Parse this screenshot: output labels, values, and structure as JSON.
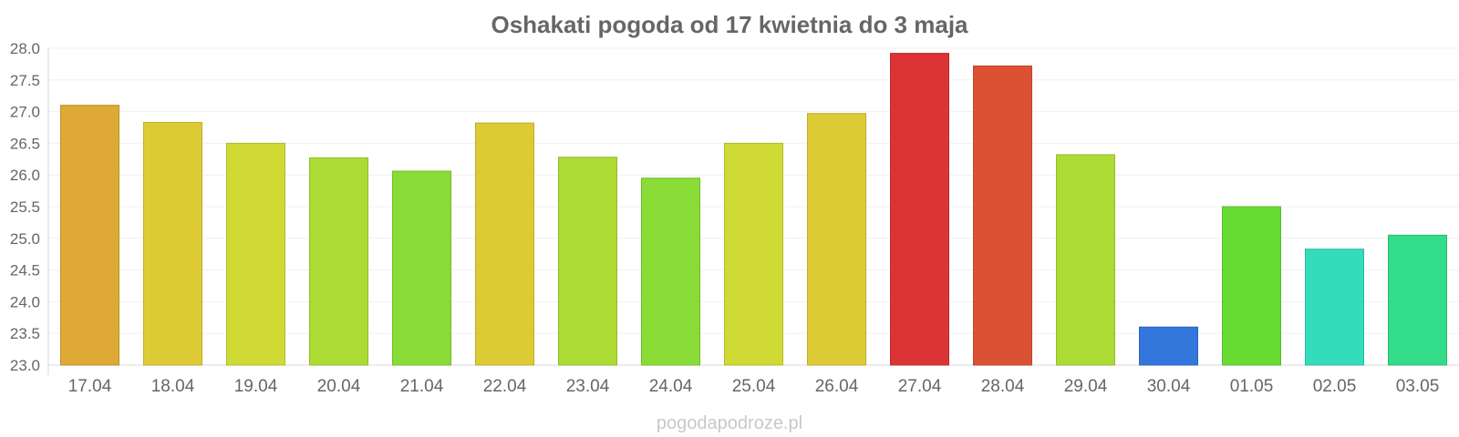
{
  "chart_data": {
    "type": "bar",
    "title": "Oshakati pogoda od 17 kwietnia do 3 maja",
    "xlabel": "",
    "ylabel": "",
    "categories": [
      "17.04",
      "18.04",
      "19.04",
      "20.04",
      "21.04",
      "22.04",
      "23.04",
      "24.04",
      "25.04",
      "26.04",
      "27.04",
      "28.04",
      "29.04",
      "30.04",
      "01.05",
      "02.05",
      "03.05"
    ],
    "values": [
      27.1,
      26.83,
      26.5,
      26.27,
      26.06,
      26.82,
      26.28,
      25.95,
      26.5,
      26.97,
      27.92,
      27.72,
      26.32,
      23.6,
      25.5,
      24.83,
      25.05
    ],
    "colors": [
      "#dea934",
      "#dccb34",
      "#cfdb34",
      "#acdc33",
      "#89dc36",
      "#dccb34",
      "#acdc33",
      "#89dc36",
      "#cfdb34",
      "#dccb34",
      "#dc3434",
      "#dc5134",
      "#acdc33",
      "#3377dc",
      "#67dc33",
      "#33dcbb",
      "#33dc89"
    ],
    "ylim": [
      23.0,
      28.0
    ],
    "yticks": [
      "23.0",
      "23.5",
      "24.0",
      "24.5",
      "25.0",
      "25.5",
      "26.0",
      "26.5",
      "27.0",
      "27.5",
      "28.0"
    ],
    "grid": true,
    "legend": "none"
  },
  "watermark": "pogodapodroze.pl"
}
